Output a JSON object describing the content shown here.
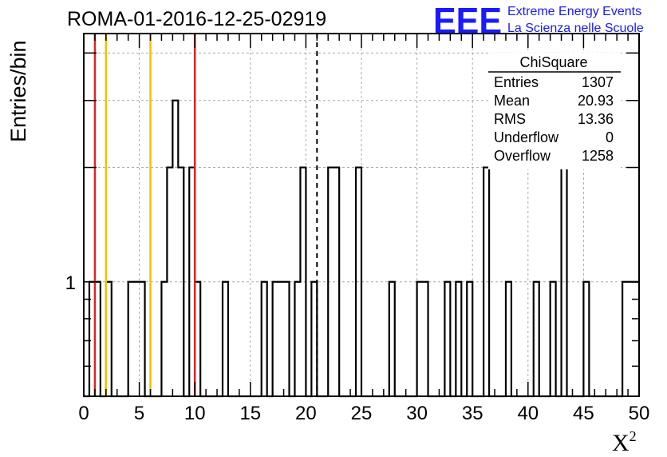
{
  "title": "ROMA-01-2016-12-25-02919",
  "logo": {
    "mark": "EEE",
    "line1": "Extreme Energy Events",
    "line2": "La Scienza nelle Scuole",
    "color": "#1a1aff"
  },
  "stats": {
    "title": "ChiSquare",
    "rows": [
      {
        "label": "Entries",
        "value": "1307"
      },
      {
        "label": "Mean",
        "value": "20.93"
      },
      {
        "label": "RMS",
        "value": "13.36"
      },
      {
        "label": "Underflow",
        "value": "0"
      },
      {
        "label": "Overflow",
        "value": "1258"
      }
    ]
  },
  "chart_data": {
    "type": "histogram",
    "title": "ROMA-01-2016-12-25-02919",
    "xlabel": "X",
    "xlabel_sup": "2",
    "ylabel": "Entries/bin",
    "xlim": [
      0,
      50
    ],
    "y_scale": "log",
    "ylim": [
      0.5,
      4.5
    ],
    "x_ticks": [
      0,
      5,
      10,
      15,
      20,
      25,
      30,
      35,
      40,
      45,
      50
    ],
    "y_tick_labels": [
      {
        "value": 1,
        "label": "1"
      }
    ],
    "grid": true,
    "bin_width": 0.5,
    "bins": [
      {
        "x": 0.5,
        "count": 1
      },
      {
        "x": 1.0,
        "count": 1
      },
      {
        "x": 2.0,
        "count": 1
      },
      {
        "x": 4.0,
        "count": 1
      },
      {
        "x": 4.5,
        "count": 1
      },
      {
        "x": 5.0,
        "count": 1
      },
      {
        "x": 7.0,
        "count": 1
      },
      {
        "x": 7.5,
        "count": 2
      },
      {
        "x": 8.0,
        "count": 3
      },
      {
        "x": 8.5,
        "count": 2
      },
      {
        "x": 9.5,
        "count": 2
      },
      {
        "x": 10.0,
        "count": 1
      },
      {
        "x": 12.5,
        "count": 1
      },
      {
        "x": 16.0,
        "count": 1
      },
      {
        "x": 17.0,
        "count": 1
      },
      {
        "x": 17.5,
        "count": 1
      },
      {
        "x": 18.0,
        "count": 1
      },
      {
        "x": 19.0,
        "count": 1
      },
      {
        "x": 19.5,
        "count": 2
      },
      {
        "x": 20.5,
        "count": 1
      },
      {
        "x": 22.0,
        "count": 2
      },
      {
        "x": 22.5,
        "count": 2
      },
      {
        "x": 24.5,
        "count": 2
      },
      {
        "x": 27.5,
        "count": 1
      },
      {
        "x": 30.0,
        "count": 1
      },
      {
        "x": 30.5,
        "count": 1
      },
      {
        "x": 32.5,
        "count": 1
      },
      {
        "x": 33.5,
        "count": 1
      },
      {
        "x": 34.5,
        "count": 1
      },
      {
        "x": 36.0,
        "count": 2
      },
      {
        "x": 38.0,
        "count": 1
      },
      {
        "x": 40.5,
        "count": 1
      },
      {
        "x": 42.0,
        "count": 1
      },
      {
        "x": 43.0,
        "count": 2
      },
      {
        "x": 45.0,
        "count": 1
      },
      {
        "x": 48.5,
        "count": 1
      },
      {
        "x": 49.0,
        "count": 1
      },
      {
        "x": 49.5,
        "count": 1
      }
    ],
    "reference_lines": [
      {
        "x": 1,
        "color": "#dd2222",
        "style": "solid"
      },
      {
        "x": 2,
        "color": "#f2c200",
        "style": "solid"
      },
      {
        "x": 6,
        "color": "#f2c200",
        "style": "solid"
      },
      {
        "x": 10,
        "color": "#dd2222",
        "style": "solid"
      },
      {
        "x": 21,
        "color": "#000000",
        "style": "dashed"
      }
    ]
  }
}
